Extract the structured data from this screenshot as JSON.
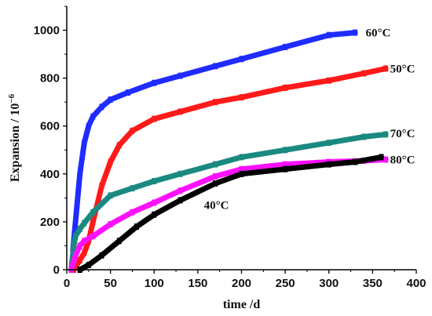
{
  "chart_data": {
    "type": "line",
    "xlabel": "time /d",
    "ylabel_main": "Expansion / 10",
    "ylabel_exp": "−6",
    "xlim": [
      0,
      400
    ],
    "ylim": [
      0,
      1100
    ],
    "x_ticks": [
      0,
      50,
      100,
      150,
      200,
      250,
      300,
      350,
      400
    ],
    "y_ticks": [
      0,
      200,
      400,
      600,
      800,
      1000
    ],
    "grid": false,
    "legend": "none",
    "series": [
      {
        "name": "60°C",
        "color": "#1f2cff",
        "x": [
          7,
          10,
          15,
          20,
          25,
          30,
          40,
          50,
          70,
          100,
          130,
          170,
          200,
          250,
          300,
          330
        ],
        "y": [
          80,
          200,
          400,
          530,
          600,
          640,
          680,
          710,
          740,
          780,
          810,
          850,
          880,
          930,
          980,
          990
        ]
      },
      {
        "name": "50°C",
        "color": "#ff1a1a",
        "x": [
          8,
          15,
          20,
          25,
          30,
          40,
          50,
          60,
          75,
          100,
          130,
          170,
          200,
          250,
          300,
          340,
          365
        ],
        "y": [
          0,
          40,
          70,
          120,
          200,
          350,
          450,
          520,
          580,
          630,
          660,
          700,
          720,
          760,
          790,
          820,
          840
        ]
      },
      {
        "name": "70°C",
        "color": "#1a8a80",
        "x": [
          5,
          8,
          10,
          15,
          20,
          30,
          50,
          75,
          100,
          130,
          170,
          200,
          250,
          300,
          340,
          365
        ],
        "y": [
          0,
          100,
          140,
          170,
          195,
          240,
          310,
          340,
          370,
          400,
          440,
          470,
          500,
          530,
          555,
          565
        ]
      },
      {
        "name": "80°C",
        "color": "#ff10ff",
        "x": [
          5,
          10,
          15,
          20,
          30,
          50,
          75,
          100,
          130,
          170,
          200,
          250,
          300,
          340,
          365
        ],
        "y": [
          0,
          60,
          100,
          120,
          140,
          190,
          240,
          280,
          330,
          390,
          420,
          440,
          450,
          455,
          460
        ]
      },
      {
        "name": "40°C",
        "color": "#000000",
        "x": [
          15,
          25,
          40,
          60,
          80,
          100,
          130,
          170,
          200,
          250,
          300,
          330,
          360
        ],
        "y": [
          0,
          20,
          60,
          120,
          180,
          230,
          290,
          360,
          400,
          420,
          440,
          450,
          470
        ]
      }
    ],
    "annotations": [
      {
        "text": "60°C",
        "x": 342,
        "y": 990
      },
      {
        "text": "50°C",
        "x": 370,
        "y": 840
      },
      {
        "text": "70°C",
        "x": 370,
        "y": 570
      },
      {
        "text": "80°C",
        "x": 370,
        "y": 460
      },
      {
        "text": "40°C",
        "x": 157,
        "y": 270
      }
    ]
  }
}
